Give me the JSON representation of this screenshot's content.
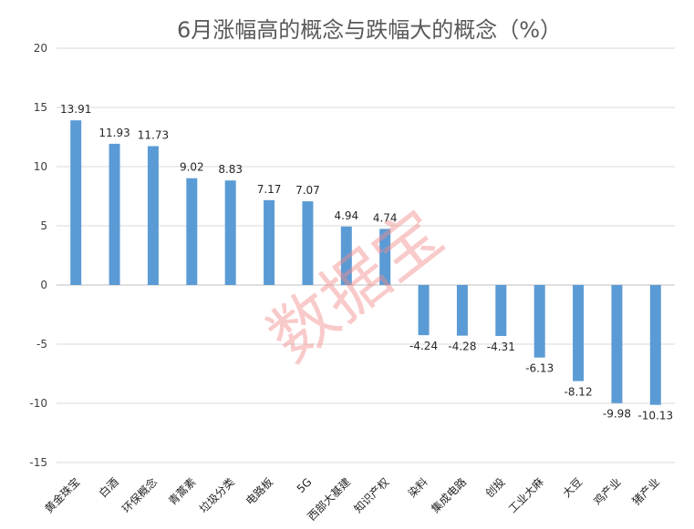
{
  "chart_data": {
    "type": "bar",
    "title": "6月涨幅高的概念与跌幅大的概念（%）",
    "categories": [
      "黄金珠宝",
      "白酒",
      "环保概念",
      "青蒿素",
      "垃圾分类",
      "电路板",
      "5G",
      "西部大基建",
      "知识产权",
      "染料",
      "集成电路",
      "创投",
      "工业大麻",
      "大豆",
      "鸡产业",
      "猪产业"
    ],
    "values": [
      13.91,
      11.93,
      11.73,
      9.02,
      8.83,
      7.17,
      7.07,
      4.94,
      4.74,
      -4.24,
      -4.28,
      -4.31,
      -6.13,
      -8.12,
      -9.98,
      -10.13
    ],
    "value_labels": [
      "13.91",
      "11.93",
      "11.73",
      "9.02",
      "8.83",
      "7.17",
      "7.07",
      "4.94",
      "4.74",
      "-4.24",
      "-4.28",
      "-4.31",
      "-6.13",
      "-8.12",
      "-9.98",
      "-10.13"
    ],
    "ylim": [
      -15,
      20
    ],
    "yticks": [
      20,
      15,
      10,
      5,
      0,
      -5,
      -10,
      -15
    ],
    "xlabel": "",
    "ylabel": "",
    "grid": true,
    "bar_color": "#5b9bd5"
  },
  "watermark": "数据宝"
}
